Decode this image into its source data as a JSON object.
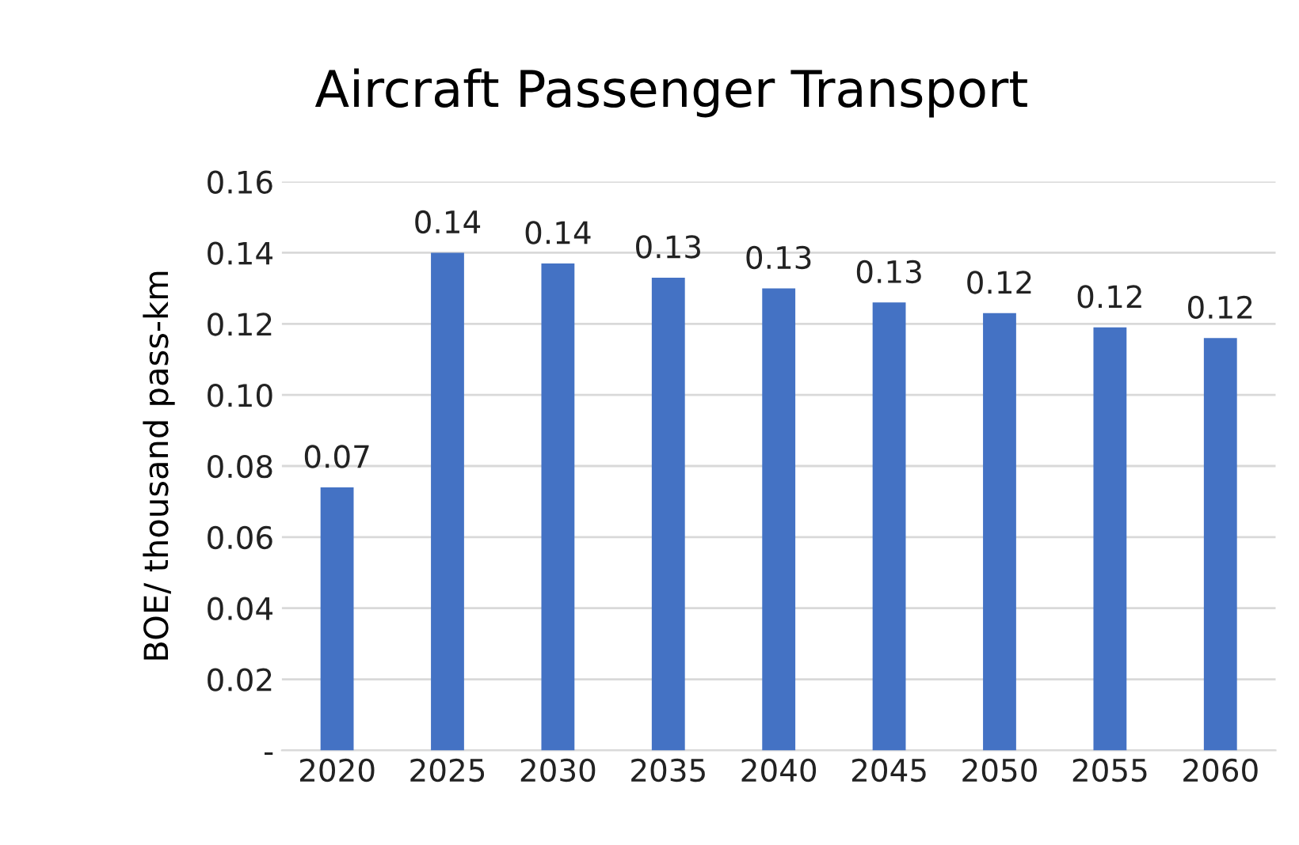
{
  "chart_data": {
    "type": "bar",
    "title": "Aircraft Passenger Transport",
    "ylabel": "BOE/ thousand pass-km",
    "categories": [
      "2020",
      "2025",
      "2030",
      "2035",
      "2040",
      "2045",
      "2050",
      "2055",
      "2060"
    ],
    "values": [
      0.074,
      0.14,
      0.137,
      0.133,
      0.13,
      0.126,
      0.123,
      0.119,
      0.116
    ],
    "value_labels": [
      "0.07",
      "0.14",
      "0.14",
      "0.13",
      "0.13",
      "0.13",
      "0.12",
      "0.12",
      "0.12"
    ],
    "color": "#4472c4",
    "ylim": [
      0,
      0.16
    ],
    "yticks": [
      {
        "value": 0,
        "label": "-"
      },
      {
        "value": 0.02,
        "label": "0.02"
      },
      {
        "value": 0.04,
        "label": "0.04"
      },
      {
        "value": 0.06,
        "label": "0.06"
      },
      {
        "value": 0.08,
        "label": "0.08"
      },
      {
        "value": 0.1,
        "label": "0.10"
      },
      {
        "value": 0.12,
        "label": "0.12"
      },
      {
        "value": 0.14,
        "label": "0.14"
      },
      {
        "value": 0.16,
        "label": "0.16"
      }
    ],
    "grid": "y",
    "legend": false
  }
}
